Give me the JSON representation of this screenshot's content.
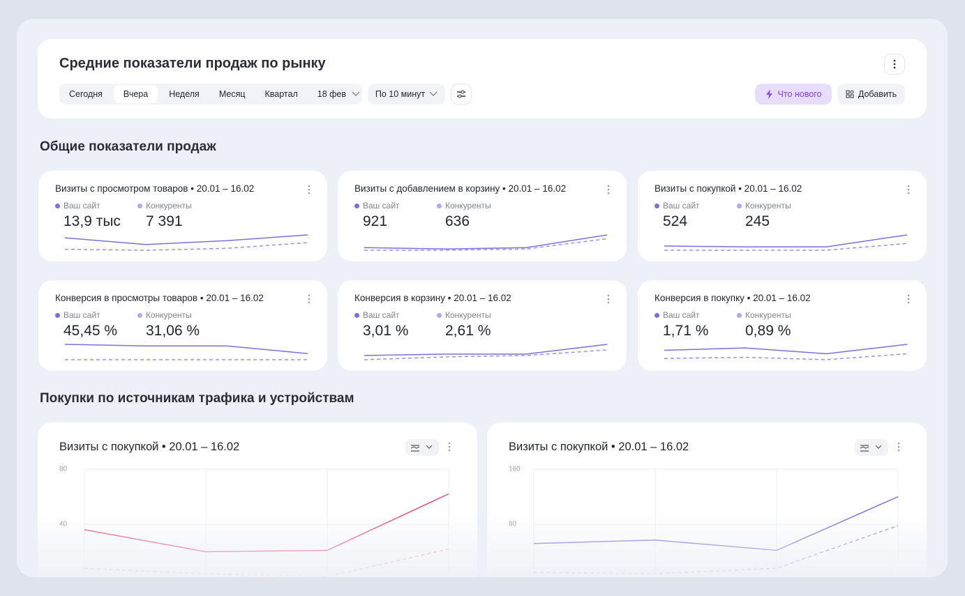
{
  "header": {
    "title": "Средние показатели продаж по рынку",
    "tabs": [
      "Сегодня",
      "Вчера",
      "Неделя",
      "Месяц",
      "Квартал"
    ],
    "active_tab": 1,
    "date": "18 фев",
    "interval": "По 10 минут",
    "whats_new": "Что нового",
    "add": "Добавить"
  },
  "section1": {
    "title": "Общие показатели продаж"
  },
  "legend": {
    "site": "Ваш сайт",
    "competitors": "Конкуренты",
    "site_color": "#7b6fe0",
    "competitors_color": "#b2a8ef"
  },
  "cards": [
    {
      "title": "Визиты с просмотром товаров • 20.01 – 16.02",
      "site_value": "13,9 тыс",
      "competitors_value": "7 391",
      "spark_site": [
        20,
        13,
        17,
        23
      ],
      "spark_competitors": [
        8,
        7,
        9,
        15
      ]
    },
    {
      "title": "Визиты с добавлением в корзину • 20.01 – 16.02",
      "site_value": "921",
      "competitors_value": "636",
      "spark_site": [
        7,
        6,
        7,
        17
      ],
      "spark_competitors": [
        5,
        5,
        6,
        14
      ]
    },
    {
      "title": "Визиты с покупкой • 20.01 – 16.02",
      "site_value": "524",
      "competitors_value": "245",
      "spark_site": [
        11,
        10,
        10,
        24
      ],
      "spark_competitors": [
        6,
        6,
        6,
        14
      ]
    },
    {
      "title": "Конверсия в просмотры товаров • 20.01 – 16.02",
      "site_value": "45,45 %",
      "competitors_value": "31,06 %",
      "spark_site": [
        16,
        15,
        15,
        10
      ],
      "spark_competitors": [
        6,
        6,
        6,
        6
      ]
    },
    {
      "title": "Конверсия в корзину • 20.01 – 16.02",
      "site_value": "3,01 %",
      "competitors_value": "2,61 %",
      "spark_site": [
        10,
        11,
        11,
        18
      ],
      "spark_competitors": [
        7,
        9,
        10,
        14
      ]
    },
    {
      "title": "Конверсия в покупку • 20.01 – 16.02",
      "site_value": "1,71 %",
      "competitors_value": "0,89 %",
      "spark_site": [
        11,
        13,
        8,
        16
      ],
      "spark_competitors": [
        4,
        5,
        3,
        8
      ]
    }
  ],
  "section2": {
    "title": "Покупки по источникам трафика и устройствам"
  },
  "chart_data": [
    {
      "type": "line",
      "title": "Визиты с покупкой • 20.01 – 16.02",
      "categories": [
        null,
        null,
        null,
        null
      ],
      "series": [
        {
          "color": "#e8507a",
          "dashed": false,
          "values": [
            36,
            20,
            21,
            62
          ]
        },
        {
          "color": "#f0a0b5",
          "dashed": true,
          "values": [
            8,
            4,
            2,
            22
          ]
        }
      ],
      "ylim": [
        0,
        80
      ],
      "yticks": [
        40,
        80
      ],
      "grid": true
    },
    {
      "type": "line",
      "title": "Визиты с покупкой • 20.01 – 16.02",
      "categories": [
        null,
        null,
        null,
        null
      ],
      "series": [
        {
          "color": "#7b6fe0",
          "dashed": false,
          "values": [
            52,
            57,
            42,
            120
          ]
        },
        {
          "color": "#9a90e8",
          "dashed": true,
          "values": [
            10,
            8,
            16,
            78
          ]
        }
      ],
      "ylim": [
        0,
        160
      ],
      "yticks": [
        80,
        160
      ],
      "grid": true
    }
  ]
}
